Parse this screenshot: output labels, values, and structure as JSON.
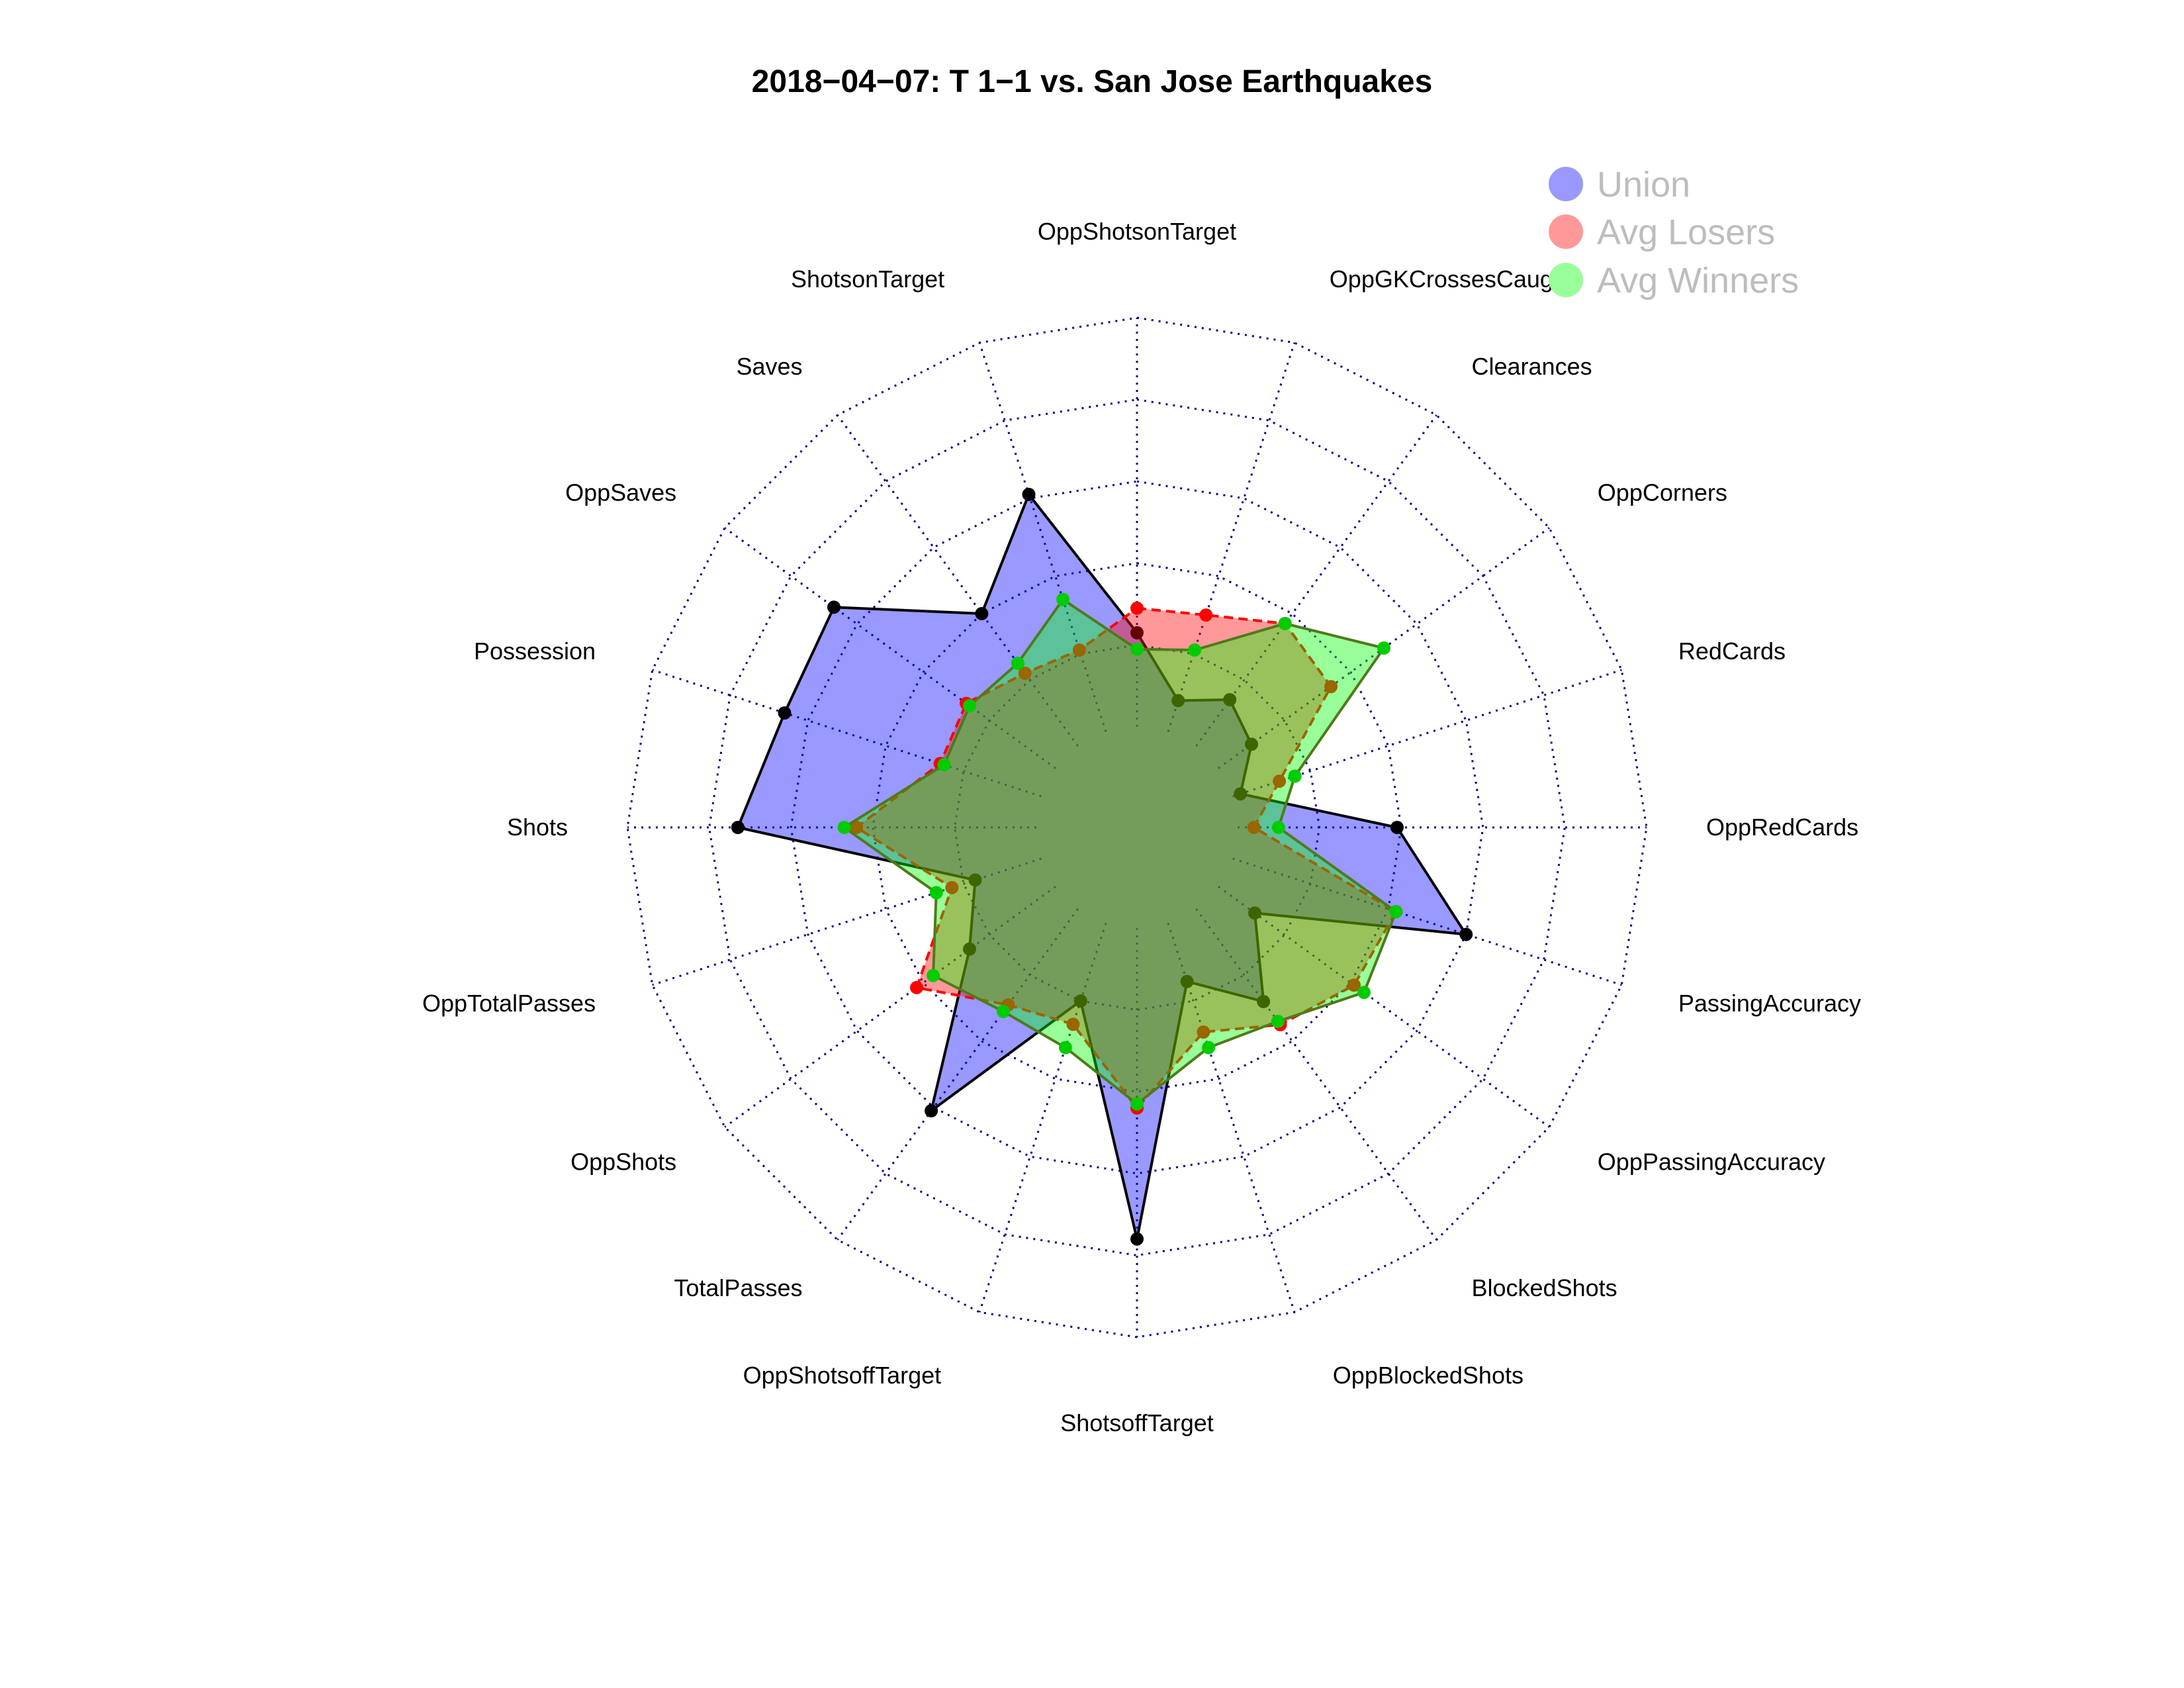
{
  "chart_data": {
    "type": "radar",
    "title": "2018−04−07:  T 1−1   vs. San Jose Earthquakes",
    "axes": [
      "OppShotsonTarget",
      "OppGKCrossesCaught",
      "Clearances",
      "OppCorners",
      "RedCards",
      "OppRedCards",
      "PassingAccuracy",
      "OppPassingAccuracy",
      "BlockedShots",
      "OppBlockedShots",
      "ShotsoffTarget",
      "OppShotsoffTarget",
      "TotalPasses",
      "OppShots",
      "OppTotalPasses",
      "Shots",
      "Possession",
      "OppSaves",
      "Saves",
      "ShotsonTarget"
    ],
    "range": [
      0,
      1
    ],
    "rings": 5,
    "legend_position": "top-right",
    "series": [
      {
        "name": "Union",
        "color": "#9999ff",
        "values": [
          0.23,
          0.08,
          0.14,
          0.1,
          0.02,
          0.39,
          0.6,
          0.11,
          0.28,
          0.15,
          0.76,
          0.2,
          0.61,
          0.26,
          0.17,
          0.73,
          0.66,
          0.67,
          0.4,
          0.61
        ]
      },
      {
        "name": "Avg Losers",
        "color": "#ff9999",
        "values": [
          0.29,
          0.3,
          0.37,
          0.34,
          0.12,
          0.04,
          0.42,
          0.41,
          0.35,
          0.28,
          0.44,
          0.26,
          0.29,
          0.42,
          0.23,
          0.44,
          0.26,
          0.27,
          0.22,
          0.21
        ]
      },
      {
        "name": "Avg Winners",
        "color": "#99ff99",
        "values": [
          0.19,
          0.21,
          0.37,
          0.5,
          0.16,
          0.1,
          0.42,
          0.44,
          0.34,
          0.32,
          0.43,
          0.32,
          0.31,
          0.37,
          0.27,
          0.47,
          0.25,
          0.26,
          0.25,
          0.34
        ]
      }
    ]
  },
  "colors": {
    "grid": "#00008b",
    "union_outline": "#000000",
    "losers_outline": "#ff0000",
    "winners_outline": "#4f7a1a",
    "overlap": "#6f9a4a"
  }
}
